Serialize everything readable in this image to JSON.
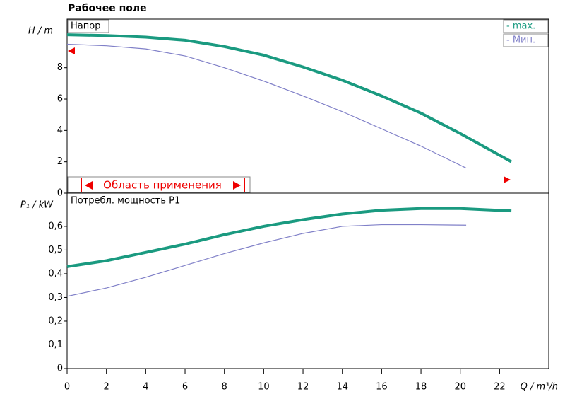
{
  "chart_data": [
    {
      "type": "line",
      "title": "Рабочее поле",
      "ylabel": "H / m",
      "panel_label": "Напор",
      "annotation": "Область применения",
      "xlim": [
        0,
        24.5
      ],
      "ylim": [
        0,
        11.1
      ],
      "yticks": [
        0,
        2,
        4,
        6,
        8
      ],
      "series": [
        {
          "name": "- max.",
          "color": "#1a9a80",
          "x": [
            0,
            2,
            4,
            6,
            8,
            10,
            12,
            14,
            16,
            18,
            20,
            22.6
          ],
          "values": [
            10.1,
            10.05,
            9.95,
            9.75,
            9.35,
            8.8,
            8.05,
            7.2,
            6.2,
            5.1,
            3.8,
            2.0
          ]
        },
        {
          "name": "- Мин.",
          "color": "#8080c8",
          "x": [
            0,
            2,
            4,
            6,
            8,
            10,
            12,
            14,
            16,
            18,
            20.3
          ],
          "values": [
            9.5,
            9.4,
            9.2,
            8.75,
            8.0,
            7.15,
            6.2,
            5.2,
            4.1,
            3.0,
            1.6
          ]
        }
      ]
    },
    {
      "type": "line",
      "ylabel": "P₁ / kW",
      "panel_label": "Потребл. мощность P1",
      "xlabel": "Q / m³/h",
      "xlim": [
        0,
        24.5
      ],
      "ylim": [
        0,
        0.74
      ],
      "xticks": [
        0,
        2,
        4,
        6,
        8,
        10,
        12,
        14,
        16,
        18,
        20,
        22
      ],
      "yticks": [
        0,
        {
          "value": 0.1,
          "label": "0,1"
        },
        {
          "value": 0.2,
          "label": "0,2"
        },
        {
          "value": 0.3,
          "label": "0,3"
        },
        {
          "value": 0.4,
          "label": "0,4"
        },
        {
          "value": 0.5,
          "label": "0,5"
        },
        {
          "value": 0.6,
          "label": "0,6"
        }
      ],
      "series": [
        {
          "color": "#1a9a80",
          "x": [
            0,
            2,
            4,
            6,
            8,
            10,
            12,
            14,
            16,
            18,
            20,
            22.6
          ],
          "values": [
            0.43,
            0.455,
            0.49,
            0.525,
            0.565,
            0.6,
            0.628,
            0.652,
            0.668,
            0.675,
            0.675,
            0.665
          ]
        },
        {
          "color": "#8080c8",
          "x": [
            0,
            2,
            4,
            6,
            8,
            10,
            12,
            14,
            16,
            18,
            20.3
          ],
          "values": [
            0.305,
            0.34,
            0.385,
            0.435,
            0.485,
            0.53,
            0.57,
            0.6,
            0.607,
            0.607,
            0.605
          ]
        }
      ]
    }
  ]
}
